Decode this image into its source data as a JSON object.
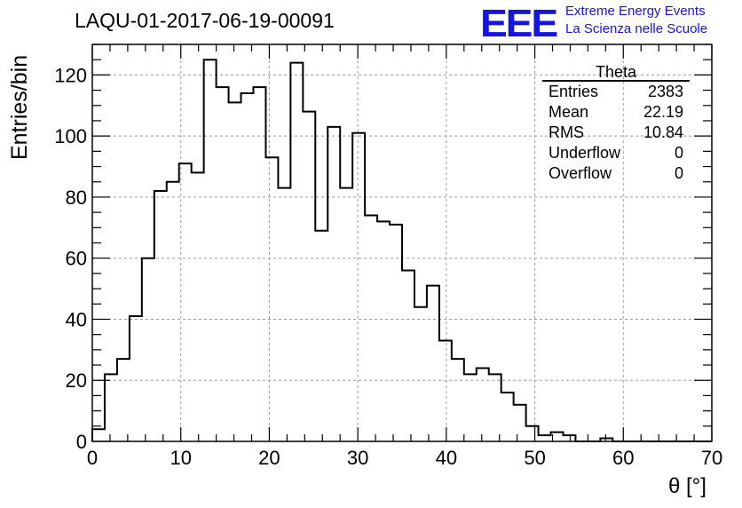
{
  "title": "LAQU-01-2017-06-19-00091",
  "logo": {
    "text": "EEE",
    "line1": "Extreme Energy Events",
    "line2": "La Scienza nelle Scuole",
    "color": "#1414e6"
  },
  "stats": {
    "name": "Theta",
    "rows": [
      {
        "label": "Entries",
        "value": "2383"
      },
      {
        "label": "Mean",
        "value": "22.19"
      },
      {
        "label": "RMS",
        "value": "10.84"
      },
      {
        "label": "Underflow",
        "value": "0"
      },
      {
        "label": "Overflow",
        "value": "0"
      }
    ]
  },
  "chart_data": {
    "type": "bar",
    "style": "step-histogram",
    "xlabel": "θ [°]",
    "ylabel": "Entries/bin",
    "xlim": [
      0,
      70
    ],
    "ylim": [
      0,
      130
    ],
    "xticks": [
      0,
      10,
      20,
      30,
      40,
      50,
      60,
      70
    ],
    "yticks": [
      0,
      20,
      40,
      60,
      80,
      100,
      120
    ],
    "grid": true,
    "bin_width": 1.4,
    "values": [
      4,
      22,
      27,
      41,
      60,
      82,
      85,
      91,
      88,
      125,
      116,
      111,
      114,
      116,
      93,
      83,
      124,
      108,
      69,
      103,
      83,
      101,
      74,
      72,
      71,
      56,
      44,
      51,
      33,
      27,
      22,
      24,
      22,
      16,
      12,
      5,
      2,
      3,
      2,
      0,
      0,
      1,
      0,
      0,
      0,
      0,
      0,
      0,
      0,
      0
    ]
  }
}
